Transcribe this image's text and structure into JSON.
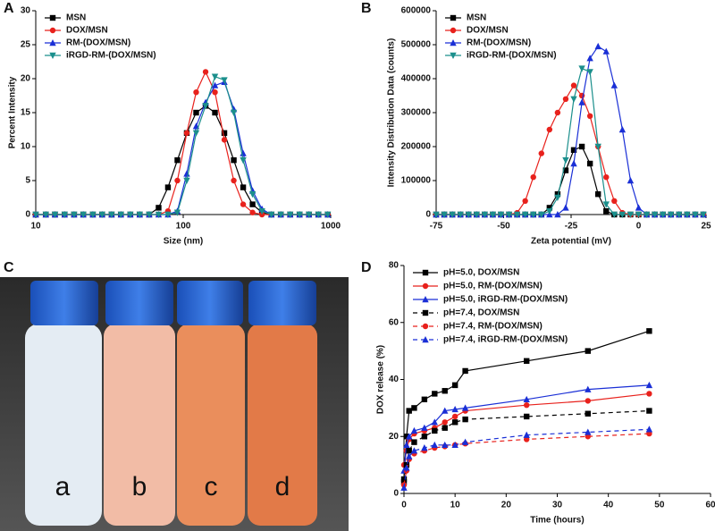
{
  "chart_data": [
    {
      "type": "line",
      "panel_label": "A",
      "xscale": "log",
      "xlabel": "Size (nm)",
      "ylabel": "Percent Intensity",
      "legend": "upper left",
      "x": [
        10,
        11.7,
        13.5,
        15.7,
        18.2,
        21,
        24.4,
        28.2,
        32.7,
        37.8,
        43.8,
        50.7,
        58.8,
        68.1,
        78.8,
        91.3,
        105.7,
        122.4,
        141.8,
        164.2,
        190.1,
        220.2,
        255,
        295.3,
        342,
        396.1,
        458.7,
        531.2,
        615.1,
        712.4,
        825,
        955.4
      ],
      "xlim": [
        10,
        1000
      ],
      "xticks": [
        10,
        100,
        1000
      ],
      "ylim": [
        0,
        30
      ],
      "yticks": [
        0,
        5,
        10,
        15,
        20,
        25,
        30
      ],
      "series": [
        {
          "name": "MSN",
          "color": "#000000",
          "marker": "square",
          "values": [
            0,
            0,
            0,
            0,
            0,
            0,
            0,
            0,
            0,
            0,
            0,
            0,
            0,
            1,
            4,
            8,
            12,
            15,
            16,
            15,
            12,
            8,
            4,
            1.5,
            0.3,
            0,
            0,
            0,
            0,
            0,
            0,
            0
          ]
        },
        {
          "name": "DOX/MSN",
          "color": "#e8211c",
          "marker": "circle",
          "values": [
            0,
            0,
            0,
            0,
            0,
            0,
            0,
            0,
            0,
            0,
            0,
            0,
            0,
            0,
            0.5,
            5,
            12,
            18,
            21,
            18,
            11,
            5,
            1.5,
            0.3,
            0,
            0,
            0,
            0,
            0,
            0,
            0,
            0
          ]
        },
        {
          "name": "RM-(DOX/MSN)",
          "color": "#1a2fd6",
          "marker": "triangle",
          "values": [
            0,
            0,
            0,
            0,
            0,
            0,
            0,
            0,
            0,
            0,
            0,
            0,
            0,
            0,
            0,
            0.5,
            6,
            13,
            16.5,
            19,
            19.5,
            15.5,
            9,
            3.5,
            0.8,
            0,
            0,
            0,
            0,
            0,
            0,
            0
          ]
        },
        {
          "name": "iRGD-RM-(DOX/MSN)",
          "color": "#1b8f8c",
          "marker": "triangle-down",
          "values": [
            0,
            0,
            0,
            0,
            0,
            0,
            0,
            0,
            0,
            0,
            0,
            0,
            0,
            0,
            0,
            0.3,
            5,
            12,
            16,
            20.3,
            19.8,
            15,
            8,
            3,
            0.5,
            0,
            0,
            0,
            0,
            0,
            0,
            0
          ]
        }
      ]
    },
    {
      "type": "line",
      "panel_label": "B",
      "xlabel": "Zeta potential (mV)",
      "ylabel": "Intensity Distribution Data (counts)",
      "legend": "upper left",
      "x": [
        -75,
        -72,
        -69,
        -66,
        -63,
        -60,
        -57,
        -54,
        -51,
        -48,
        -45,
        -42,
        -39,
        -36,
        -33,
        -30,
        -27,
        -24,
        -21,
        -18,
        -15,
        -12,
        -9,
        -6,
        -3,
        0,
        3,
        6,
        9,
        12,
        15,
        18,
        21,
        24
      ],
      "xlim": [
        -75,
        25
      ],
      "xticks": [
        -75,
        -50,
        -25,
        0,
        25
      ],
      "ylim": [
        0,
        600000
      ],
      "yticks": [
        0,
        100000,
        200000,
        300000,
        400000,
        500000,
        600000
      ],
      "series": [
        {
          "name": "MSN",
          "color": "#000000",
          "marker": "square",
          "values": [
            0,
            0,
            0,
            0,
            0,
            0,
            0,
            0,
            0,
            0,
            0,
            0,
            0,
            0,
            20000,
            60000,
            130000,
            190000,
            200000,
            150000,
            60000,
            10000,
            0,
            0,
            0,
            0,
            0,
            0,
            0,
            0,
            0,
            0,
            0,
            0
          ]
        },
        {
          "name": "DOX/MSN",
          "color": "#e8211c",
          "marker": "circle",
          "values": [
            0,
            0,
            0,
            0,
            0,
            0,
            0,
            0,
            0,
            0,
            5000,
            40000,
            110000,
            180000,
            250000,
            300000,
            340000,
            380000,
            350000,
            290000,
            200000,
            110000,
            40000,
            5000,
            0,
            0,
            0,
            0,
            0,
            0,
            0,
            0,
            0,
            0
          ]
        },
        {
          "name": "RM-(DOX/MSN)",
          "color": "#1a2fd6",
          "marker": "triangle",
          "values": [
            0,
            0,
            0,
            0,
            0,
            0,
            0,
            0,
            0,
            0,
            0,
            0,
            0,
            0,
            0,
            0,
            20000,
            150000,
            330000,
            460000,
            495000,
            480000,
            380000,
            250000,
            100000,
            20000,
            0,
            0,
            0,
            0,
            0,
            0,
            0,
            0
          ]
        },
        {
          "name": "iRGD-RM-(DOX/MSN)",
          "color": "#1b8f8c",
          "marker": "triangle-down",
          "values": [
            0,
            0,
            0,
            0,
            0,
            0,
            0,
            0,
            0,
            0,
            0,
            0,
            0,
            0,
            10000,
            50000,
            160000,
            340000,
            430000,
            420000,
            200000,
            30000,
            0,
            0,
            0,
            0,
            0,
            0,
            0,
            0,
            0,
            0,
            0,
            0
          ]
        }
      ]
    },
    {
      "type": "line",
      "panel_label": "D",
      "xlabel": "Time (hours)",
      "ylabel": "DOX release (%)",
      "legend": "upper left",
      "x": [
        0,
        0.5,
        1,
        2,
        4,
        6,
        8,
        10,
        12,
        24,
        36,
        48
      ],
      "xlim": [
        0,
        60
      ],
      "xticks": [
        0,
        10,
        20,
        30,
        40,
        50,
        60
      ],
      "ylim": [
        0,
        80
      ],
      "yticks": [
        0,
        20,
        40,
        60,
        80
      ],
      "series": [
        {
          "name": "pH=5.0, DOX/MSN",
          "color": "#000000",
          "marker": "square",
          "dashed": false,
          "values": [
            5,
            20,
            29,
            30,
            33,
            35,
            36,
            38,
            43,
            46.5,
            50,
            57
          ]
        },
        {
          "name": "pH=5.0, RM-(DOX/MSN)",
          "color": "#e8211c",
          "marker": "circle",
          "dashed": false,
          "values": [
            10,
            15,
            19,
            21,
            22,
            23,
            25,
            27,
            29,
            31,
            32.5,
            35
          ]
        },
        {
          "name": "pH=5.0, iRGD-RM-(DOX/MSN)",
          "color": "#1a2fd6",
          "marker": "triangle",
          "dashed": false,
          "values": [
            8,
            17,
            20,
            22,
            23,
            25,
            29,
            29.5,
            30,
            33,
            36.5,
            38
          ]
        },
        {
          "name": "pH=7.4, DOX/MSN",
          "color": "#000000",
          "marker": "square",
          "dashed": true,
          "values": [
            4,
            10,
            15,
            18,
            20,
            22,
            23,
            25,
            26,
            27,
            28,
            29
          ]
        },
        {
          "name": "pH=7.4, RM-(DOX/MSN)",
          "color": "#e8211c",
          "marker": "circle",
          "dashed": true,
          "values": [
            3,
            8,
            12,
            14,
            15,
            16,
            16.5,
            17,
            17.5,
            19,
            20,
            21
          ]
        },
        {
          "name": "pH=7.4, iRGD-RM-(DOX/MSN)",
          "color": "#1a2fd6",
          "marker": "triangle",
          "dashed": true,
          "values": [
            2,
            9,
            13,
            15,
            16,
            17,
            17,
            17,
            18,
            20.5,
            21.5,
            22.5
          ]
        }
      ]
    }
  ],
  "photo": {
    "panel_label": "C",
    "vial_labels": [
      "a",
      "b",
      "c",
      "d"
    ]
  }
}
